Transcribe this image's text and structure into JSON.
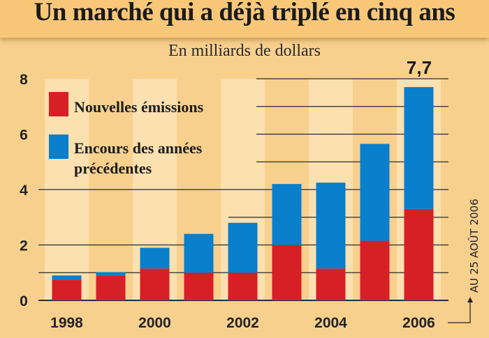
{
  "chart_data": {
    "type": "bar",
    "stacked": true,
    "title": "Un marché qui a déjà triplé en cinq ans",
    "subtitle": "En milliards de dollars",
    "categories": [
      "1998",
      "1999",
      "2000",
      "2001",
      "2002",
      "2003",
      "2004",
      "2005",
      "2006"
    ],
    "x_tick_labels": [
      "1998",
      "2000",
      "2002",
      "2004",
      "2006"
    ],
    "y_tick_labels": [
      "0",
      "2",
      "4",
      "6",
      "8"
    ],
    "ylim": [
      0,
      8
    ],
    "grid": true,
    "series": [
      {
        "name": "Nouvelles émissions",
        "color": "#d71f26",
        "values": [
          0.75,
          0.9,
          1.15,
          1.0,
          1.0,
          2.0,
          1.15,
          2.15,
          3.3
        ]
      },
      {
        "name": "Encours des années précédentes",
        "color": "#0a7fcc",
        "values": [
          0.15,
          0.12,
          0.75,
          1.4,
          1.8,
          2.2,
          3.1,
          3.5,
          4.4
        ]
      }
    ],
    "totals": [
      0.9,
      1.02,
      1.9,
      2.4,
      2.8,
      4.2,
      4.25,
      5.65,
      7.7
    ],
    "annotations": {
      "last_total_label": "7,7",
      "date_note": "AU 25 AOÛT 2006"
    },
    "legend": {
      "placement": "top-left",
      "items": [
        "Nouvelles émissions",
        "Encours des années",
        "précédentes"
      ]
    }
  }
}
